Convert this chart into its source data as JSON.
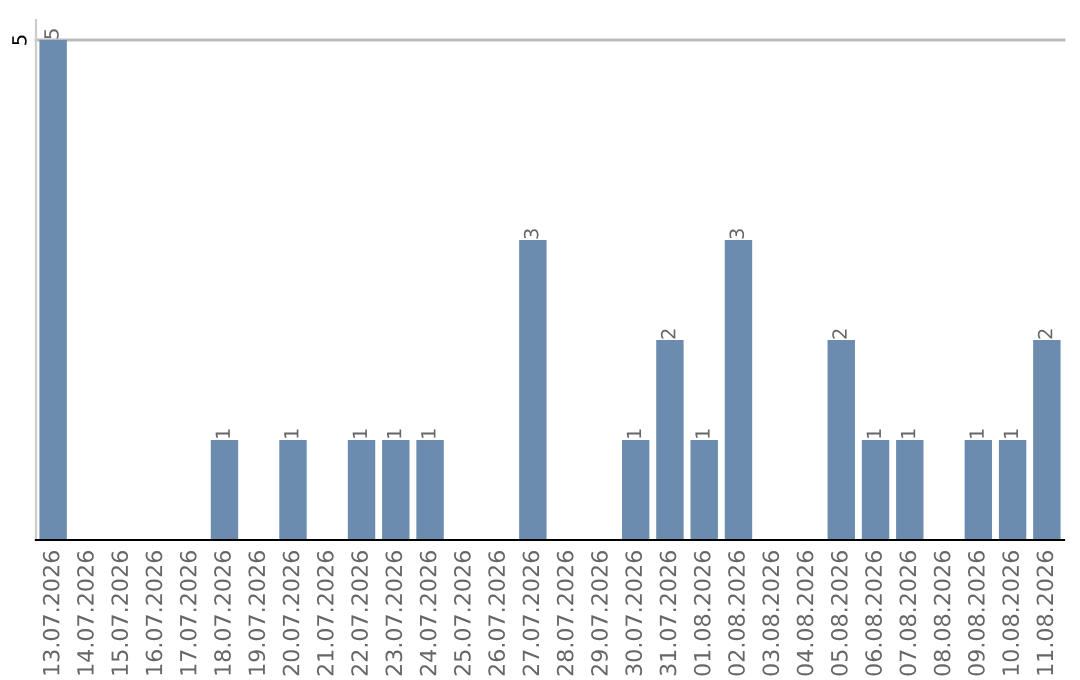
{
  "chart_data": {
    "type": "bar",
    "categories": [
      "13.07.2026",
      "14.07.2026",
      "15.07.2026",
      "16.07.2026",
      "17.07.2026",
      "18.07.2026",
      "19.07.2026",
      "20.07.2026",
      "21.07.2026",
      "22.07.2026",
      "23.07.2026",
      "24.07.2026",
      "25.07.2026",
      "26.07.2026",
      "27.07.2026",
      "28.07.2026",
      "29.07.2026",
      "30.07.2026",
      "31.07.2026",
      "01.08.2026",
      "02.08.2026",
      "03.08.2026",
      "04.08.2026",
      "05.08.2026",
      "06.08.2026",
      "07.08.2026",
      "08.08.2026",
      "09.08.2026",
      "10.08.2026",
      "11.08.2026"
    ],
    "values": [
      5,
      0,
      0,
      0,
      0,
      1,
      0,
      1,
      0,
      1,
      1,
      1,
      0,
      0,
      3,
      0,
      0,
      1,
      2,
      1,
      3,
      0,
      0,
      2,
      1,
      1,
      0,
      1,
      1,
      2
    ],
    "value_labels": [
      "5",
      null,
      null,
      null,
      null,
      "1",
      null,
      "1",
      null,
      "1",
      "1",
      "1",
      null,
      null,
      "3",
      null,
      null,
      "1",
      "2",
      "1",
      "3",
      null,
      null,
      "2",
      "1",
      "1",
      null,
      "1",
      "1",
      "2"
    ],
    "color": "#6b8cae",
    "ylim": [
      0,
      5.2
    ],
    "yticks": [
      5
    ],
    "grid": "y"
  }
}
